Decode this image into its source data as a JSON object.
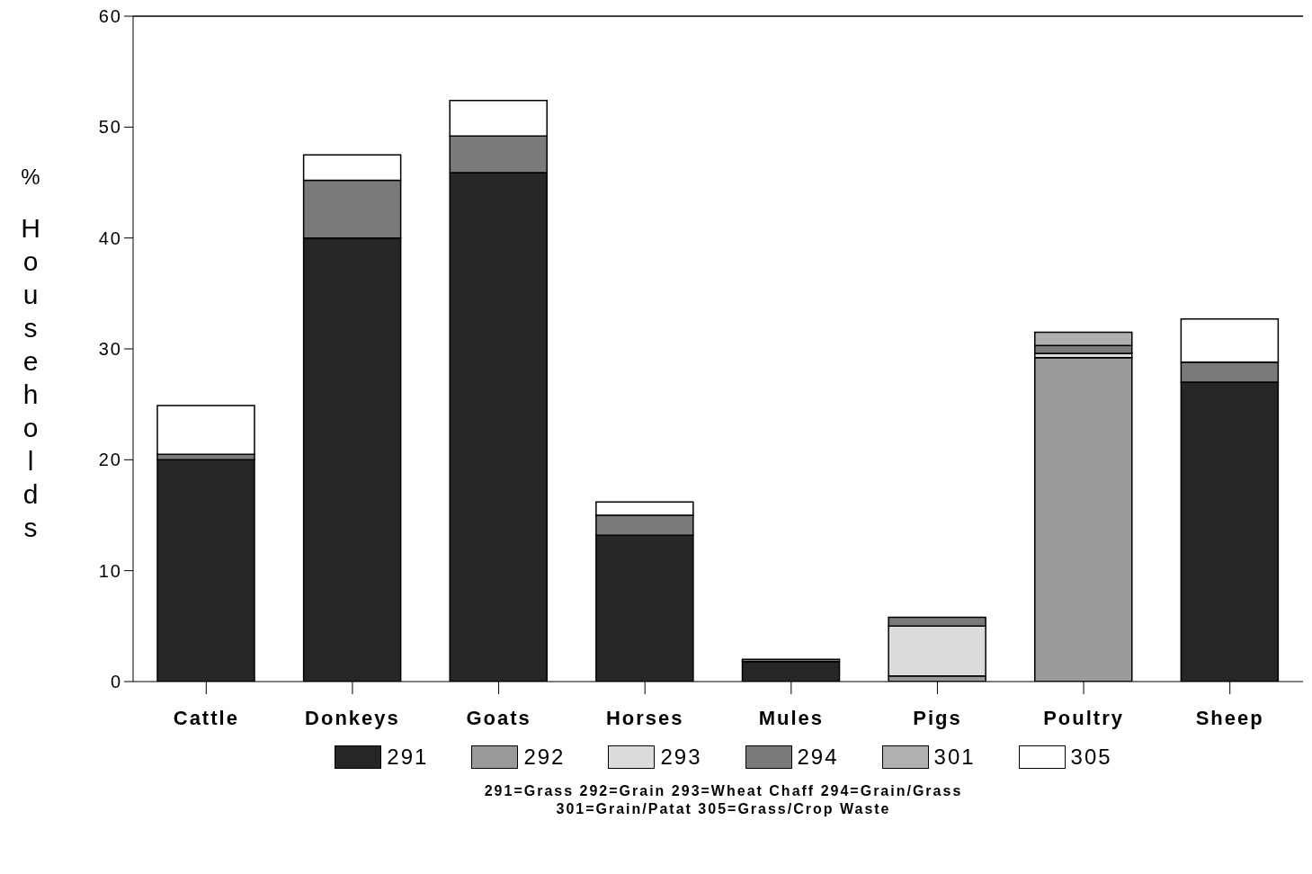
{
  "chart_data": {
    "type": "bar",
    "stacked": true,
    "ylabel": "% Households",
    "categories": [
      "Cattle",
      "Donkeys",
      "Goats",
      "Horses",
      "Mules",
      "Pigs",
      "Poultry",
      "Sheep"
    ],
    "series": [
      {
        "name": "291",
        "color": "#262626",
        "values": [
          20.0,
          40.0,
          45.9,
          13.2,
          1.8,
          null,
          null,
          27.0
        ]
      },
      {
        "name": "292",
        "color": "#9a9a9a",
        "values": [
          null,
          null,
          null,
          null,
          null,
          0.5,
          29.2,
          null
        ]
      },
      {
        "name": "293",
        "color": "#dcdcdc",
        "values": [
          null,
          null,
          null,
          null,
          null,
          4.5,
          0.4,
          null
        ]
      },
      {
        "name": "294",
        "color": "#7a7a7a",
        "values": [
          0.5,
          5.2,
          3.3,
          1.8,
          0.2,
          0.8,
          0.7,
          1.8
        ]
      },
      {
        "name": "301",
        "color": "#b0b0b0",
        "values": [
          null,
          null,
          null,
          null,
          null,
          null,
          1.2,
          null
        ]
      },
      {
        "name": "305",
        "color": "#ffffff",
        "values": [
          4.4,
          2.3,
          3.2,
          1.2,
          null,
          null,
          null,
          3.9
        ]
      }
    ],
    "ylim": [
      0,
      60
    ],
    "yticks": [
      0,
      10,
      20,
      30,
      40,
      50,
      60
    ],
    "grid": false,
    "legend": "bottom",
    "annotations": [
      "291=Grass 292=Grain 293=Wheat Chaff 294=Grain/Grass",
      "301=Grain/Patat 305=Grass/Crop Waste"
    ]
  }
}
